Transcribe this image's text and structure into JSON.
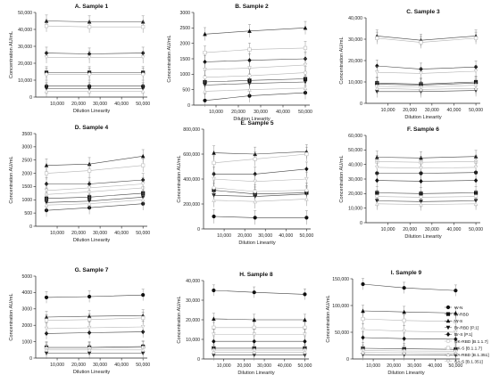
{
  "chart_data": [
    {
      "type": "line",
      "title": "A. Sample 1",
      "xlabel": "Dilution Linearity",
      "ylabel": "Concentration AU/mL",
      "x": [
        5000,
        25000,
        50000
      ],
      "xticks": [
        "10,000",
        "20,000",
        "30,000",
        "40,000",
        "50,000"
      ],
      "xtick_values": [
        10000,
        20000,
        30000,
        40000,
        50000
      ],
      "ylim": [
        0,
        50000
      ],
      "yticks": [
        "0",
        "10,000",
        "20,000",
        "30,000",
        "40,000",
        "50,000"
      ],
      "ytick_values": [
        0,
        10000,
        20000,
        30000,
        40000,
        50000
      ],
      "series": [
        {
          "key": "W-N",
          "values": [
            6500,
            6500,
            6500
          ]
        },
        {
          "key": "W-RBD",
          "values": [
            14500,
            14500,
            14500
          ]
        },
        {
          "key": "W-S",
          "values": [
            45000,
            44500,
            44500
          ]
        },
        {
          "key": "Br-RBD",
          "values": [
            5000,
            5000,
            5000
          ]
        },
        {
          "key": "Br-S",
          "values": [
            26000,
            25500,
            26000
          ]
        },
        {
          "key": "UK-RBD",
          "values": [
            13500,
            13500,
            13500
          ]
        },
        {
          "key": "UK-S",
          "values": [
            42000,
            41500,
            41500
          ]
        },
        {
          "key": "SA-RBD",
          "values": [
            3500,
            3500,
            3500
          ]
        },
        {
          "key": "SA-S",
          "values": [
            23500,
            23500,
            23500
          ]
        }
      ]
    },
    {
      "type": "line",
      "title": "B. Sample 2",
      "xlabel": "Dilution Linearity",
      "ylabel": "Concentration AU/mL",
      "x": [
        5000,
        25000,
        50000
      ],
      "xticks": [
        "10,000",
        "20,000",
        "30,000",
        "40,000",
        "50,000"
      ],
      "xtick_values": [
        10000,
        20000,
        30000,
        40000,
        50000
      ],
      "ylim": [
        0,
        3000
      ],
      "yticks": [
        "0",
        "500",
        "1000",
        "1500",
        "2000",
        "2500",
        "3000"
      ],
      "ytick_values": [
        0,
        500,
        1000,
        1500,
        2000,
        2500,
        3000
      ],
      "series": [
        {
          "key": "W-N",
          "values": [
            150,
            300,
            400
          ]
        },
        {
          "key": "W-RBD",
          "values": [
            750,
            800,
            850
          ]
        },
        {
          "key": "W-S",
          "values": [
            2300,
            2400,
            2500
          ]
        },
        {
          "key": "Br-RBD",
          "values": [
            650,
            700,
            750
          ]
        },
        {
          "key": "Br-S",
          "values": [
            1400,
            1450,
            1500
          ]
        },
        {
          "key": "UK-RBD",
          "values": [
            900,
            950,
            1050
          ]
        },
        {
          "key": "UK-S",
          "values": [
            1700,
            1800,
            1850
          ]
        },
        {
          "key": "SA-RBD",
          "values": [
            450,
            500,
            550
          ]
        },
        {
          "key": "SA-S",
          "values": [
            1150,
            1200,
            1300
          ]
        }
      ]
    },
    {
      "type": "line",
      "title": "C. Sample 3",
      "xlabel": "Dilution Linearity",
      "ylabel": "Concentration AU/mL",
      "x": [
        5000,
        25000,
        50000
      ],
      "xticks": [
        "10,000",
        "20,000",
        "30,000",
        "40,000",
        "50,000"
      ],
      "xtick_values": [
        10000,
        20000,
        30000,
        40000,
        50000
      ],
      "ylim": [
        0,
        40000
      ],
      "yticks": [
        "0",
        "10,000",
        "20,000",
        "30,000",
        "40,000"
      ],
      "ytick_values": [
        0,
        10000,
        20000,
        30000,
        40000
      ],
      "series": [
        {
          "key": "W-N",
          "values": [
            9000,
            8500,
            9500
          ]
        },
        {
          "key": "W-RBD",
          "values": [
            9500,
            9000,
            10000
          ]
        },
        {
          "key": "W-S",
          "values": [
            31500,
            29500,
            31500
          ]
        },
        {
          "key": "Br-RBD",
          "values": [
            5500,
            5500,
            6000
          ]
        },
        {
          "key": "Br-S",
          "values": [
            17500,
            16000,
            17000
          ]
        },
        {
          "key": "UK-RBD",
          "values": [
            8000,
            7500,
            8500
          ]
        },
        {
          "key": "UK-S",
          "values": [
            30500,
            28500,
            30500
          ]
        },
        {
          "key": "SA-RBD",
          "values": [
            7000,
            6500,
            7000
          ]
        },
        {
          "key": "SA-S",
          "values": [
            14500,
            14000,
            15000
          ]
        }
      ]
    },
    {
      "type": "line",
      "title": "D. Sample 4",
      "xlabel": "Dilution Linearity",
      "ylabel": "Concentration AU/mL",
      "x": [
        5000,
        25000,
        50000
      ],
      "xticks": [
        "10,000",
        "20,000",
        "30,000",
        "40,000",
        "50,000"
      ],
      "xtick_values": [
        10000,
        20000,
        30000,
        40000,
        50000
      ],
      "ylim": [
        0,
        3500
      ],
      "yticks": [
        "0",
        "500",
        "1000",
        "1500",
        "2000",
        "2500",
        "3000",
        "3500"
      ],
      "ytick_values": [
        0,
        500,
        1000,
        1500,
        2000,
        2500,
        3000,
        3500
      ],
      "series": [
        {
          "key": "W-N",
          "values": [
            600,
            700,
            850
          ]
        },
        {
          "key": "W-RBD",
          "values": [
            1050,
            1100,
            1250
          ]
        },
        {
          "key": "W-S",
          "values": [
            2300,
            2350,
            2650
          ]
        },
        {
          "key": "Br-RBD",
          "values": [
            900,
            950,
            1100
          ]
        },
        {
          "key": "Br-S",
          "values": [
            1600,
            1600,
            1750
          ]
        },
        {
          "key": "UK-RBD",
          "values": [
            1200,
            1300,
            1450
          ]
        },
        {
          "key": "UK-S",
          "values": [
            2000,
            2100,
            2300
          ]
        },
        {
          "key": "SA-RBD",
          "values": [
            800,
            850,
            1000
          ]
        },
        {
          "key": "SA-S",
          "values": [
            1350,
            1450,
            1600
          ]
        }
      ]
    },
    {
      "type": "line",
      "title": "E. Sample 5",
      "xlabel": "Dilution Linearity",
      "ylabel": "Concentration AU/mL",
      "x": [
        5000,
        25000,
        50000
      ],
      "xticks": [
        "10,000",
        "20,000",
        "30,000",
        "40,000",
        "50,000"
      ],
      "xtick_values": [
        10000,
        20000,
        30000,
        40000,
        50000
      ],
      "ylim": [
        0,
        800000
      ],
      "yticks": [
        "0",
        "200,000",
        "400,000",
        "600,000",
        "800,000"
      ],
      "ytick_values": [
        0,
        200000,
        400000,
        600000,
        800000
      ],
      "series": [
        {
          "key": "W-N",
          "values": [
            100000,
            90000,
            90000
          ]
        },
        {
          "key": "W-RBD",
          "values": [
            310000,
            280000,
            290000
          ]
        },
        {
          "key": "W-S",
          "values": [
            610000,
            600000,
            620000
          ]
        },
        {
          "key": "Br-RBD",
          "values": [
            270000,
            260000,
            280000
          ]
        },
        {
          "key": "Br-S",
          "values": [
            440000,
            440000,
            480000
          ]
        },
        {
          "key": "UK-RBD",
          "values": [
            330000,
            300000,
            310000
          ]
        },
        {
          "key": "UK-S",
          "values": [
            530000,
            560000,
            600000
          ]
        },
        {
          "key": "SA-RBD",
          "values": [
            230000,
            220000,
            240000
          ]
        },
        {
          "key": "SA-S",
          "values": [
            400000,
            380000,
            400000
          ]
        }
      ]
    },
    {
      "type": "line",
      "title": "F. Sample 6",
      "xlabel": "Dilution Linearity",
      "ylabel": "Concentration AU/mL",
      "x": [
        5000,
        25000,
        50000
      ],
      "xticks": [
        "10,000",
        "20,000",
        "30,000",
        "40,000",
        "50,000"
      ],
      "xtick_values": [
        10000,
        20000,
        30000,
        40000,
        50000
      ],
      "ylim": [
        0,
        60000
      ],
      "yticks": [
        "0",
        "10,000",
        "20,000",
        "30,000",
        "40,000",
        "50,000",
        "60,000"
      ],
      "ytick_values": [
        0,
        10000,
        20000,
        30000,
        40000,
        50000,
        60000
      ],
      "series": [
        {
          "key": "W-N",
          "values": [
            34000,
            34000,
            34500
          ]
        },
        {
          "key": "W-RBD",
          "values": [
            20500,
            20000,
            20500
          ]
        },
        {
          "key": "W-S",
          "values": [
            45000,
            44500,
            45500
          ]
        },
        {
          "key": "Br-RBD",
          "values": [
            15000,
            14500,
            15000
          ]
        },
        {
          "key": "Br-S",
          "values": [
            29000,
            28500,
            29000
          ]
        },
        {
          "key": "UK-RBD",
          "values": [
            18000,
            17500,
            18000
          ]
        },
        {
          "key": "UK-S",
          "values": [
            42000,
            41500,
            42000
          ]
        },
        {
          "key": "SA-RBD",
          "values": [
            13000,
            12500,
            13000
          ]
        },
        {
          "key": "SA-S",
          "values": [
            38000,
            37500,
            38000
          ]
        }
      ]
    },
    {
      "type": "line",
      "title": "G. Sample 7",
      "xlabel": "Dilution Linearity",
      "ylabel": "Concentration AU/mL",
      "x": [
        5000,
        25000,
        50000
      ],
      "xticks": [
        "10,000",
        "20,000",
        "30,000",
        "40,000",
        "50,000"
      ],
      "xtick_values": [
        10000,
        20000,
        30000,
        40000,
        50000
      ],
      "ylim": [
        0,
        5000
      ],
      "yticks": [
        "0",
        "1000",
        "2000",
        "3000",
        "4000",
        "5000"
      ],
      "ytick_values": [
        0,
        1000,
        2000,
        3000,
        4000,
        5000
      ],
      "series": [
        {
          "key": "W-N",
          "values": [
            3700,
            3750,
            3850
          ]
        },
        {
          "key": "W-RBD",
          "values": [
            650,
            650,
            700
          ]
        },
        {
          "key": "W-S",
          "values": [
            2500,
            2550,
            2600
          ]
        },
        {
          "key": "Br-RBD",
          "values": [
            300,
            300,
            300
          ]
        },
        {
          "key": "Br-S",
          "values": [
            1500,
            1550,
            1600
          ]
        },
        {
          "key": "UK-RBD",
          "values": [
            600,
            600,
            650
          ]
        },
        {
          "key": "UK-S",
          "values": [
            2300,
            2350,
            2450
          ]
        },
        {
          "key": "SA-RBD",
          "values": [
            500,
            500,
            500
          ]
        },
        {
          "key": "SA-S",
          "values": [
            1800,
            1850,
            1900
          ]
        }
      ]
    },
    {
      "type": "line",
      "title": "H. Sample 8",
      "xlabel": "Dilution Linearity",
      "ylabel": "Concentration AU/mL",
      "x": [
        5000,
        25000,
        50000
      ],
      "xticks": [
        "10,000",
        "20,000",
        "30,000",
        "40,000",
        "50,000"
      ],
      "xtick_values": [
        10000,
        20000,
        30000,
        40000,
        50000
      ],
      "ylim": [
        0,
        40000
      ],
      "yticks": [
        "0",
        "10,000",
        "20,000",
        "30,000",
        "40,000"
      ],
      "ytick_values": [
        0,
        10000,
        20000,
        30000,
        40000
      ],
      "series": [
        {
          "key": "W-N",
          "values": [
            35000,
            34000,
            33000
          ]
        },
        {
          "key": "W-RBD",
          "values": [
            5500,
            5500,
            5500
          ]
        },
        {
          "key": "W-S",
          "values": [
            20500,
            20000,
            20000
          ]
        },
        {
          "key": "Br-RBD",
          "values": [
            2000,
            2000,
            2000
          ]
        },
        {
          "key": "Br-S",
          "values": [
            9000,
            9000,
            9000
          ]
        },
        {
          "key": "UK-RBD",
          "values": [
            4500,
            4500,
            4500
          ]
        },
        {
          "key": "UK-S",
          "values": [
            16000,
            16000,
            16000
          ]
        },
        {
          "key": "SA-RBD",
          "values": [
            3500,
            3500,
            3500
          ]
        },
        {
          "key": "SA-S",
          "values": [
            12500,
            12500,
            12500
          ]
        }
      ]
    },
    {
      "type": "line",
      "title": "I. Sample 9",
      "xlabel": "Dilution Linearity",
      "ylabel": "Concentration AU/mL",
      "x": [
        5000,
        25000,
        50000
      ],
      "xticks": [
        "10,000",
        "20,000",
        "30,000",
        "40,000",
        "50,000"
      ],
      "xtick_values": [
        10000,
        20000,
        30000,
        40000,
        50000
      ],
      "ylim": [
        0,
        150000
      ],
      "yticks": [
        "0",
        "50,000",
        "100,000",
        "150,000"
      ],
      "ytick_values": [
        0,
        50000,
        100000,
        150000
      ],
      "series": [
        {
          "key": "W-N",
          "values": [
            140000,
            133000,
            128000
          ]
        },
        {
          "key": "W-RBD",
          "values": [
            20000,
            19000,
            18000
          ]
        },
        {
          "key": "W-S",
          "values": [
            90000,
            88000,
            86000
          ]
        },
        {
          "key": "Br-RBD",
          "values": [
            8000,
            7500,
            7000
          ]
        },
        {
          "key": "Br-S",
          "values": [
            40000,
            38000,
            37000
          ]
        },
        {
          "key": "UK-RBD",
          "values": [
            16000,
            15000,
            14500
          ]
        },
        {
          "key": "UK-S",
          "values": [
            75000,
            72000,
            70000
          ]
        },
        {
          "key": "SA-RBD",
          "values": [
            12000,
            11500,
            11000
          ]
        },
        {
          "key": "SA-S",
          "values": [
            55000,
            52000,
            50000
          ]
        }
      ]
    }
  ],
  "legend": {
    "placement": "right of panel I",
    "entries": [
      {
        "key": "W-N",
        "label": "W-N",
        "marker": "circle",
        "color": "#111111"
      },
      {
        "key": "W-RBD",
        "label": "W-RBD",
        "marker": "square",
        "color": "#111111"
      },
      {
        "key": "W-S",
        "label": "W-S",
        "marker": "triangle-up",
        "color": "#111111"
      },
      {
        "key": "Br-RBD",
        "label": "Br-RBD [P.1]",
        "marker": "triangle-down",
        "color": "#111111"
      },
      {
        "key": "Br-S",
        "label": "Br-S [P.1]",
        "marker": "diamond",
        "color": "#111111"
      },
      {
        "key": "UK-RBD",
        "label": "UK-RBD [B.1.1.7]",
        "marker": "circle-open",
        "color": "#bfbfbf"
      },
      {
        "key": "UK-S",
        "label": "UK-S [B.1.1.7]",
        "marker": "square-open",
        "color": "#bfbfbf"
      },
      {
        "key": "SA-RBD",
        "label": "SA-RBD [B.1.351]",
        "marker": "triangle-open",
        "color": "#bfbfbf"
      },
      {
        "key": "SA-S",
        "label": "SA-S [B.1.351]",
        "marker": "triangle-down-open",
        "color": "#bfbfbf"
      }
    ]
  }
}
